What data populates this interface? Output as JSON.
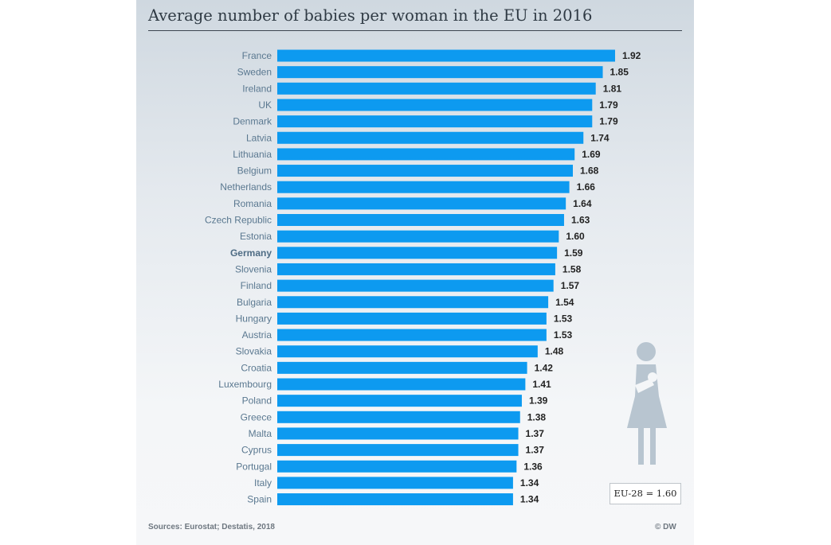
{
  "title": "Average number of babies per woman in the EU in 2016",
  "source": "Sources: Eurostat; Destatis, 2018",
  "credit": "© DW",
  "eu_average_label": "EU-28 = 1.60",
  "icons": {
    "figure": "woman-holding-baby-icon"
  },
  "colors": {
    "bar": "#0d9af0",
    "highlight_label": "Germany"
  },
  "chart_data": {
    "type": "bar",
    "orientation": "horizontal",
    "title": "Average number of babies per woman in the EU in 2016",
    "xlabel": "",
    "ylabel": "",
    "xlim": [
      0,
      1.92
    ],
    "grid": false,
    "categories": [
      "France",
      "Sweden",
      "Ireland",
      "UK",
      "Denmark",
      "Latvia",
      "Lithuania",
      "Belgium",
      "Netherlands",
      "Romania",
      "Czech Republic",
      "Estonia",
      "Germany",
      "Slovenia",
      "Finland",
      "Bulgaria",
      "Hungary",
      "Austria",
      "Slovakia",
      "Croatia",
      "Luxembourg",
      "Poland",
      "Greece",
      "Malta",
      "Cyprus",
      "Portugal",
      "Italy",
      "Spain"
    ],
    "values": [
      1.92,
      1.85,
      1.81,
      1.79,
      1.79,
      1.74,
      1.69,
      1.68,
      1.66,
      1.64,
      1.63,
      1.6,
      1.59,
      1.58,
      1.57,
      1.54,
      1.53,
      1.53,
      1.48,
      1.42,
      1.41,
      1.39,
      1.38,
      1.37,
      1.37,
      1.36,
      1.34,
      1.34
    ],
    "value_labels": [
      "1.92",
      "1.85",
      "1.81",
      "1.79",
      "1.79",
      "1.74",
      "1.69",
      "1.68",
      "1.66",
      "1.64",
      "1.63",
      "1.60",
      "1.59",
      "1.58",
      "1.57",
      "1.54",
      "1.53",
      "1.53",
      "1.48",
      "1.42",
      "1.41",
      "1.39",
      "1.38",
      "1.37",
      "1.37",
      "1.36",
      "1.34",
      "1.34"
    ]
  }
}
